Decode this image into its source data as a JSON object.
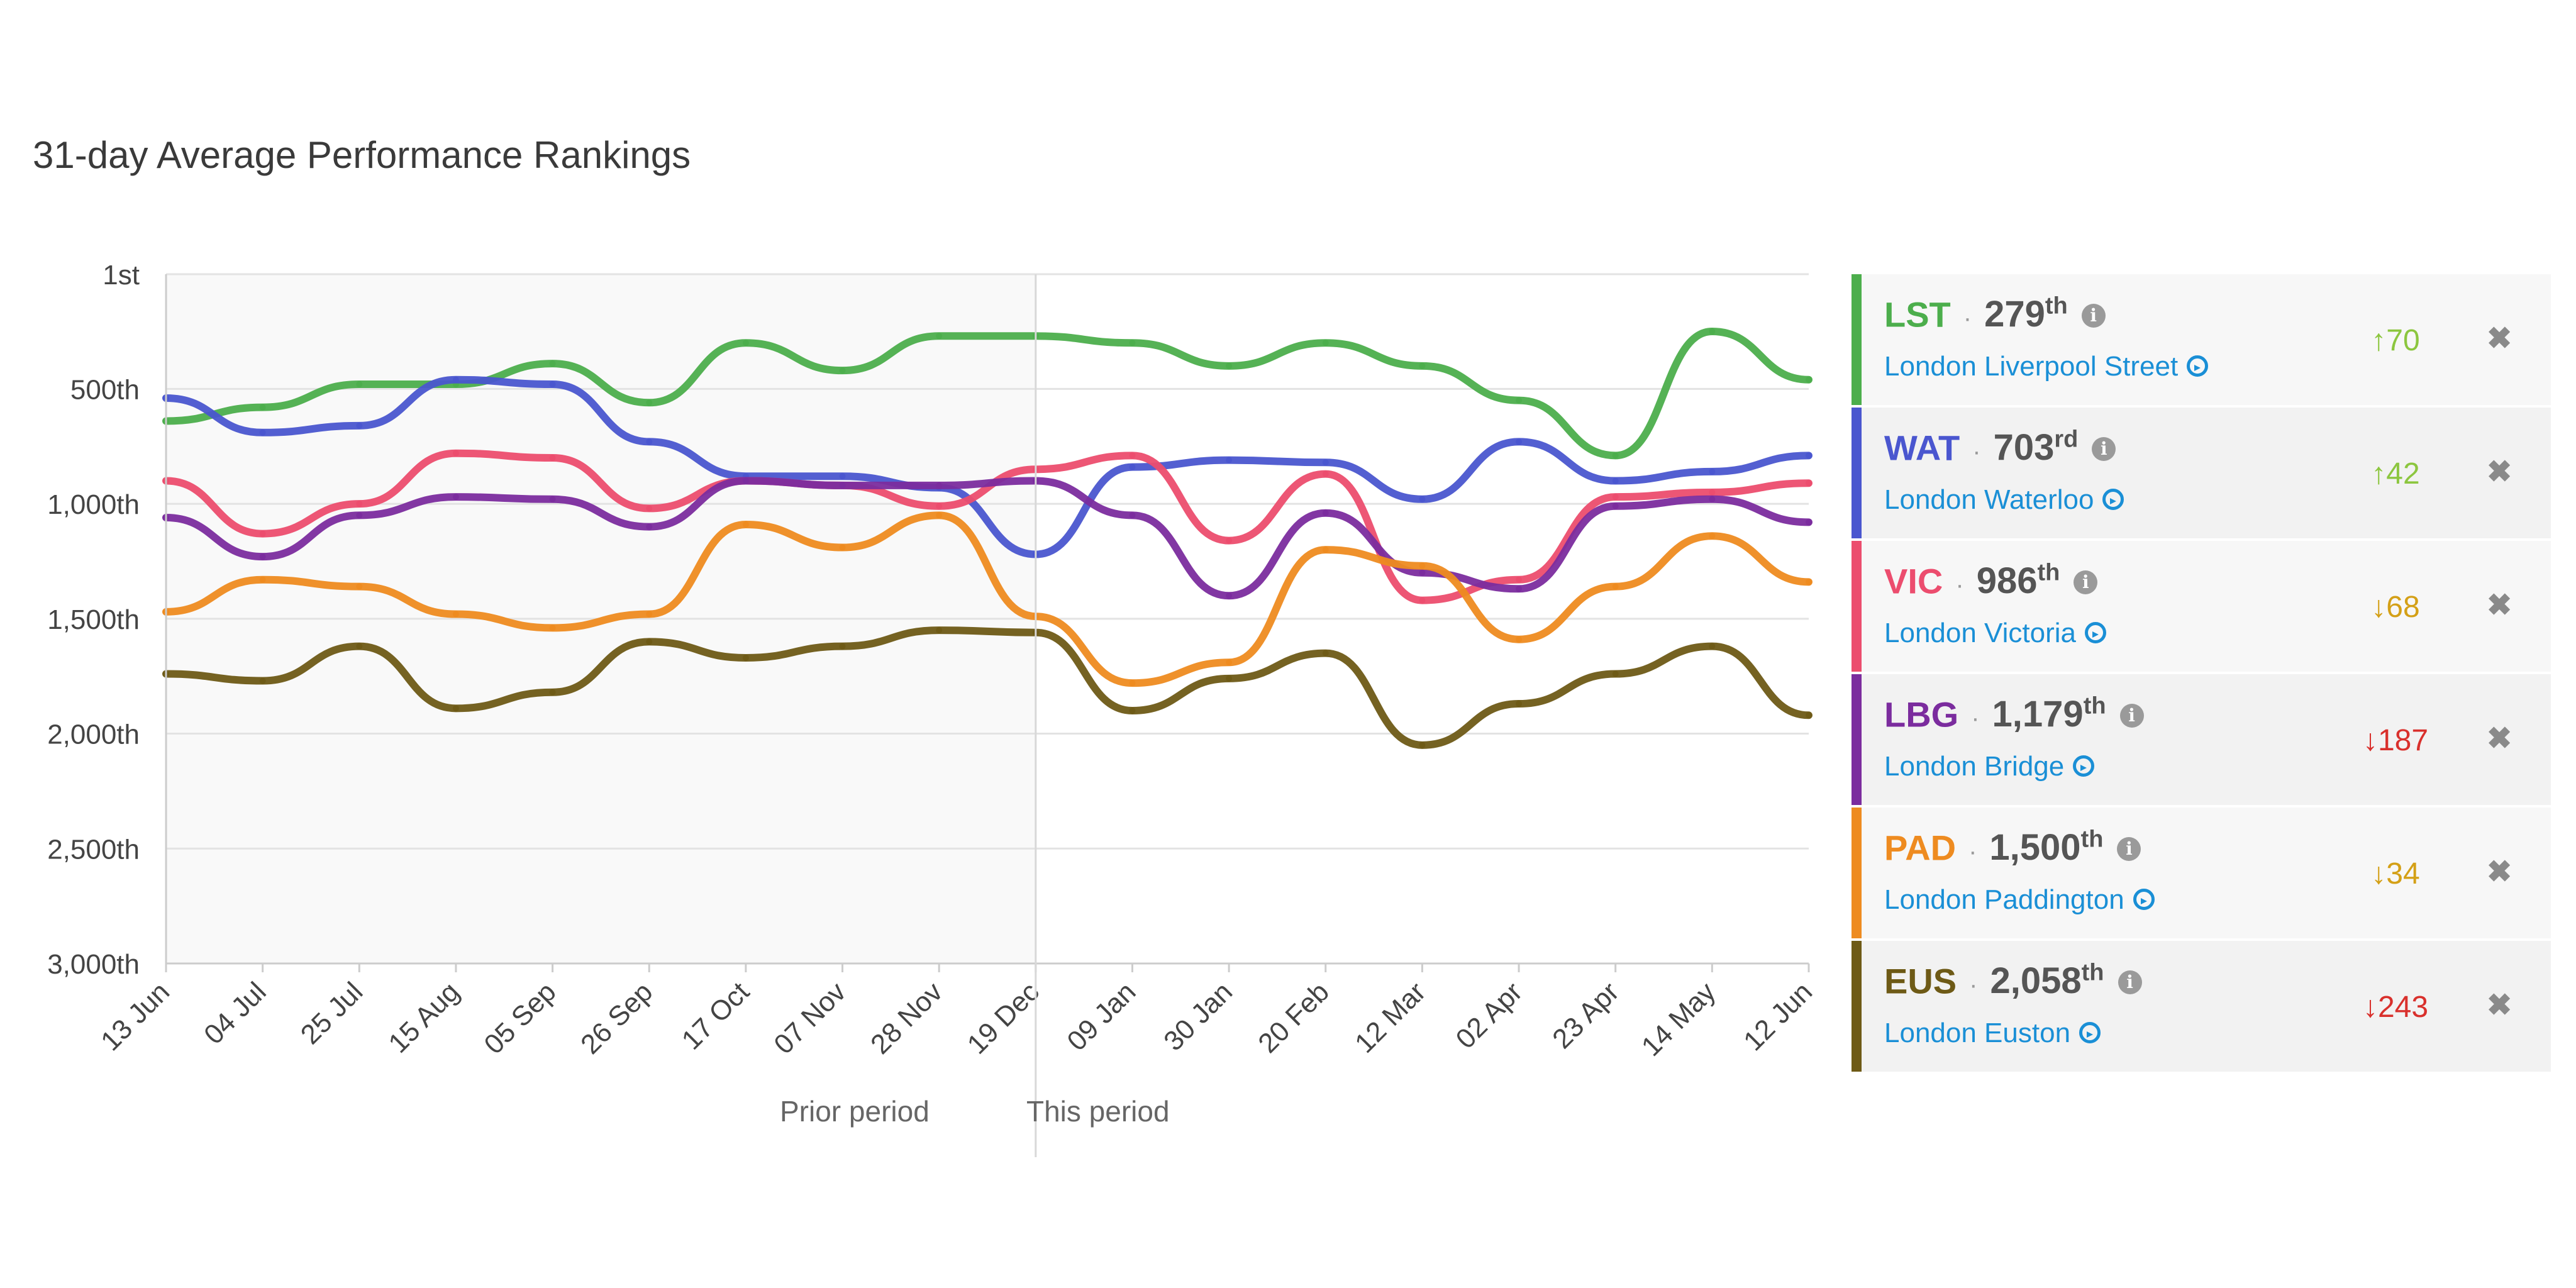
{
  "title": "31-day Average Performance Rankings",
  "period_labels": {
    "prior": "Prior period",
    "current": "This period"
  },
  "colors": {
    "LST": "#4cae4c",
    "WAT": "#4a56cf",
    "VIC": "#ec4d6e",
    "LBG": "#7b2c9e",
    "PAD": "#ee8b20",
    "EUS": "#6e5a16"
  },
  "stations": [
    {
      "code": "LST",
      "rank": "279",
      "suffix": "th",
      "name": "London Liverpool Street",
      "change": "↑70",
      "change_color": "#8cc63f",
      "info_icon": "info-icon",
      "link_icon": "arrow-circle-right-icon",
      "close_icon": "close-icon"
    },
    {
      "code": "WAT",
      "rank": "703",
      "suffix": "rd",
      "name": "London Waterloo",
      "change": "↑42",
      "change_color": "#8cc63f",
      "info_icon": "info-icon",
      "link_icon": "arrow-circle-right-icon",
      "close_icon": "close-icon"
    },
    {
      "code": "VIC",
      "rank": "986",
      "suffix": "th",
      "name": "London Victoria",
      "change": "↓68",
      "change_color": "#d4a017",
      "info_icon": "info-icon",
      "link_icon": "arrow-circle-right-icon",
      "close_icon": "close-icon"
    },
    {
      "code": "LBG",
      "rank": "1,179",
      "suffix": "th",
      "name": "London Bridge",
      "change": "↓187",
      "change_color": "#d9302c",
      "info_icon": "info-icon",
      "link_icon": "arrow-circle-right-icon",
      "close_icon": "close-icon"
    },
    {
      "code": "PAD",
      "rank": "1,500",
      "suffix": "th",
      "name": "London Paddington",
      "change": "↓34",
      "change_color": "#d4a017",
      "info_icon": "info-icon",
      "link_icon": "arrow-circle-right-icon",
      "close_icon": "close-icon"
    },
    {
      "code": "EUS",
      "rank": "2,058",
      "suffix": "th",
      "name": "London Euston",
      "change": "↓243",
      "change_color": "#d9302c",
      "info_icon": "info-icon",
      "link_icon": "arrow-circle-right-icon",
      "close_icon": "close-icon"
    }
  ],
  "chart_data": {
    "type": "line",
    "title": "31-day Average Performance Rankings",
    "y_inverted": true,
    "ylim": [
      1,
      3000
    ],
    "yticks": [
      1,
      500,
      1000,
      1500,
      2000,
      2500,
      3000
    ],
    "ytick_labels": [
      "1st",
      "500th",
      "1,000th",
      "1,500th",
      "2,000th",
      "2,500th",
      "3,000th"
    ],
    "x_tick_labels": [
      "13 Jun",
      "04 Jul",
      "25 Jul",
      "15 Aug",
      "05 Sep",
      "26 Sep",
      "17 Oct",
      "07 Nov",
      "28 Nov",
      "19 Dec",
      "09 Jan",
      "30 Jan",
      "20 Feb",
      "12 Mar",
      "02 Apr",
      "23 Apr",
      "14 May",
      "12 Jun"
    ],
    "divider_at": "19 Dec",
    "grid": true,
    "x": [
      "13 Jun",
      "04 Jul",
      "25 Jul",
      "15 Aug",
      "05 Sep",
      "26 Sep",
      "17 Oct",
      "07 Nov",
      "28 Nov",
      "19 Dec",
      "09 Jan",
      "30 Jan",
      "20 Feb",
      "12 Mar",
      "02 Apr",
      "23 Apr",
      "14 May",
      "12 Jun"
    ],
    "series": [
      {
        "name": "LST",
        "values": [
          640,
          580,
          480,
          480,
          390,
          560,
          300,
          420,
          270,
          270,
          300,
          400,
          300,
          400,
          550,
          790,
          250,
          460
        ]
      },
      {
        "name": "WAT",
        "values": [
          540,
          690,
          660,
          460,
          480,
          730,
          880,
          880,
          930,
          1220,
          840,
          810,
          820,
          980,
          730,
          900,
          860,
          790
        ]
      },
      {
        "name": "VIC",
        "values": [
          900,
          1130,
          1000,
          780,
          800,
          1020,
          900,
          920,
          1010,
          850,
          790,
          1160,
          870,
          1420,
          1330,
          970,
          950,
          910
        ]
      },
      {
        "name": "LBG",
        "values": [
          1060,
          1230,
          1050,
          970,
          980,
          1100,
          900,
          920,
          920,
          900,
          1050,
          1400,
          1040,
          1300,
          1370,
          1010,
          980,
          1080
        ]
      },
      {
        "name": "PAD",
        "values": [
          1470,
          1330,
          1360,
          1480,
          1540,
          1480,
          1090,
          1190,
          1050,
          1490,
          1780,
          1690,
          1200,
          1270,
          1590,
          1360,
          1140,
          1340
        ]
      },
      {
        "name": "EUS",
        "values": [
          1740,
          1770,
          1620,
          1890,
          1820,
          1600,
          1670,
          1620,
          1550,
          1560,
          1900,
          1760,
          1650,
          2050,
          1870,
          1740,
          1620,
          1920
        ]
      }
    ]
  }
}
